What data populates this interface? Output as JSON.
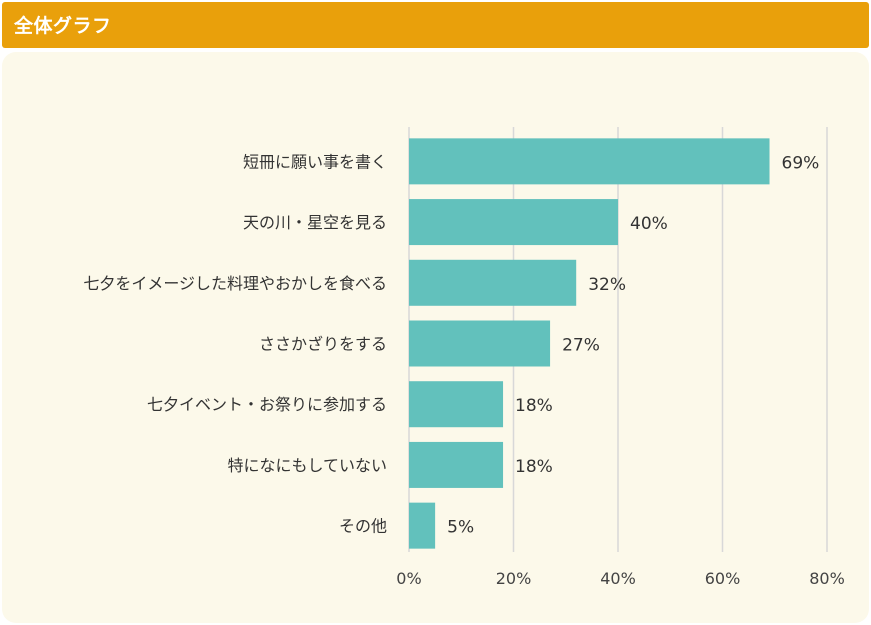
{
  "header": {
    "title": "全体グラフ"
  },
  "chart_data": {
    "type": "bar",
    "orientation": "horizontal",
    "categories": [
      "短冊に願い事を書く",
      "天の川・星空を見る",
      "七夕をイメージした料理やおかしを食べる",
      "ささかざりをする",
      "七夕イベント・お祭りに参加する",
      "特になにもしていない",
      "その他"
    ],
    "values": [
      69,
      40,
      32,
      27,
      18,
      18,
      5
    ],
    "value_labels": [
      "69%",
      "40%",
      "32%",
      "27%",
      "18%",
      "18%",
      "5%"
    ],
    "xlim": [
      0,
      80
    ],
    "xticks": [
      0,
      20,
      40,
      60,
      80
    ],
    "xtick_labels": [
      "0%",
      "20%",
      "40%",
      "60%",
      "80%"
    ],
    "grid": true,
    "bar_color": "#62c1bc",
    "grid_color": "#d8d8d8"
  }
}
